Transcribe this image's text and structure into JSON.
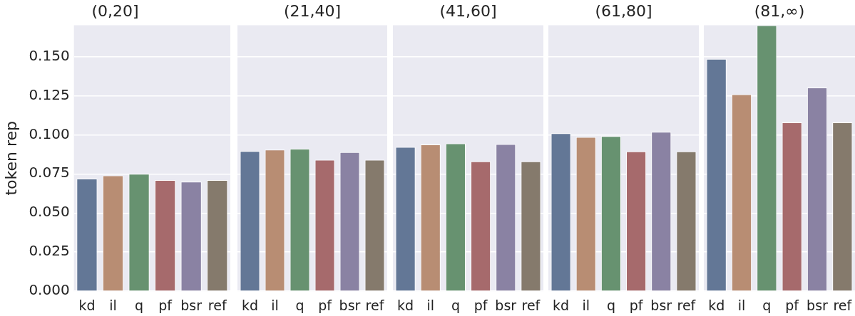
{
  "chart_data": [
    {
      "type": "bar",
      "title": "(0,20]",
      "ylabel": "token rep",
      "categories": [
        "kd",
        "il",
        "q",
        "pf",
        "bsr",
        "ref"
      ],
      "values": [
        0.072,
        0.074,
        0.075,
        0.071,
        0.07,
        0.071
      ],
      "colors": [
        "#637796",
        "#b88d73",
        "#679270",
        "#a66a6c",
        "#8a82a3",
        "#857a6c"
      ],
      "ylim": [
        0,
        0.17
      ],
      "yticks": [
        {
          "value": 0,
          "label": "0.000"
        },
        {
          "value": 0.025,
          "label": "0.025"
        },
        {
          "value": 0.05,
          "label": "0.050"
        },
        {
          "value": 0.075,
          "label": "0.075"
        },
        {
          "value": 0.1,
          "label": "0.100"
        },
        {
          "value": 0.125,
          "label": "0.125"
        },
        {
          "value": 0.15,
          "label": "0.150"
        }
      ],
      "grid": "y"
    },
    {
      "type": "bar",
      "title": "(21,40]",
      "categories": [
        "kd",
        "il",
        "q",
        "pf",
        "bsr",
        "ref"
      ],
      "values": [
        0.0896,
        0.0905,
        0.091,
        0.084,
        0.0889,
        0.084
      ],
      "colors": [
        "#637796",
        "#b88d73",
        "#679270",
        "#a66a6c",
        "#8a82a3",
        "#857a6c"
      ],
      "ylim": [
        0,
        0.17
      ],
      "yticks": [
        0,
        0.025,
        0.05,
        0.075,
        0.1,
        0.125,
        0.15
      ],
      "grid": "y",
      "tick_labels": "x"
    },
    {
      "type": "bar",
      "title": "(41,60]",
      "categories": [
        "kd",
        "il",
        "q",
        "pf",
        "bsr",
        "ref"
      ],
      "values": [
        0.0922,
        0.0938,
        0.0945,
        0.083,
        0.094,
        0.083
      ],
      "colors": [
        "#637796",
        "#b88d73",
        "#679270",
        "#a66a6c",
        "#8a82a3",
        "#857a6c"
      ],
      "ylim": [
        0,
        0.17
      ],
      "yticks": [
        0,
        0.025,
        0.05,
        0.075,
        0.1,
        0.125,
        0.15
      ],
      "grid": "y",
      "tick_labels": "x"
    },
    {
      "type": "bar",
      "title": "(61,80]",
      "categories": [
        "kd",
        "il",
        "q",
        "pf",
        "bsr",
        "ref"
      ],
      "values": [
        0.1009,
        0.0985,
        0.0991,
        0.0894,
        0.1018,
        0.0894
      ],
      "colors": [
        "#637796",
        "#b88d73",
        "#679270",
        "#a66a6c",
        "#8a82a3",
        "#857a6c"
      ],
      "ylim": [
        0,
        0.17
      ],
      "yticks": [
        0,
        0.025,
        0.05,
        0.075,
        0.1,
        0.125,
        0.15
      ],
      "grid": "y",
      "tick_labels": "x"
    },
    {
      "type": "bar",
      "title": "(81,∞)",
      "categories": [
        "kd",
        "il",
        "q",
        "pf",
        "bsr",
        "ref"
      ],
      "values": [
        0.1485,
        0.1258,
        0.17,
        0.1079,
        0.1302,
        0.1079
      ],
      "colors": [
        "#637796",
        "#b88d73",
        "#679270",
        "#a66a6c",
        "#8a82a3",
        "#857a6c"
      ],
      "ylim": [
        0,
        0.17
      ],
      "yticks": [
        0,
        0.025,
        0.05,
        0.075,
        0.1,
        0.125,
        0.15
      ],
      "grid": "y",
      "tick_labels": "x"
    }
  ]
}
